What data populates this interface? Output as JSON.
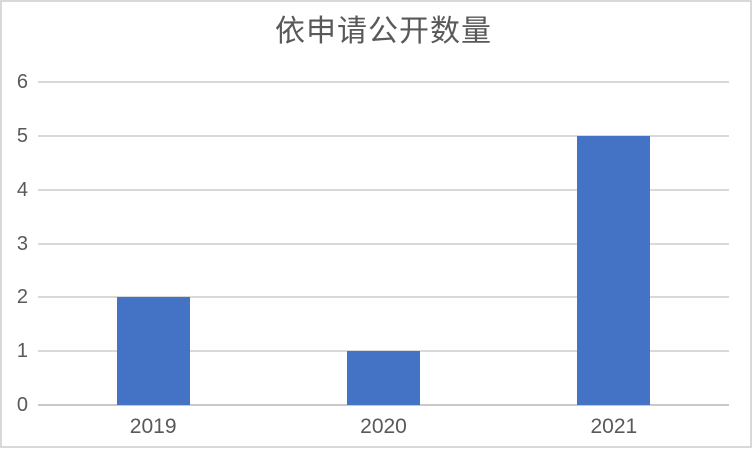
{
  "chart": {
    "colors": {
      "bar": "#4472C4",
      "gridline": "#D9D9D9",
      "axis_line": "#C9C9C9",
      "text": "#595959",
      "frame_border": "#D9D9D9",
      "background": "#FFFFFF"
    }
  },
  "chart_data": {
    "type": "bar",
    "title": "依申请公开数量",
    "categories": [
      "2019",
      "2020",
      "2021"
    ],
    "values": [
      2,
      1,
      5
    ],
    "xlabel": "",
    "ylabel": "",
    "ylim": [
      0,
      6
    ],
    "yticks": [
      0,
      1,
      2,
      3,
      4,
      5,
      6
    ],
    "grid": "horizontal",
    "legend": "none"
  }
}
